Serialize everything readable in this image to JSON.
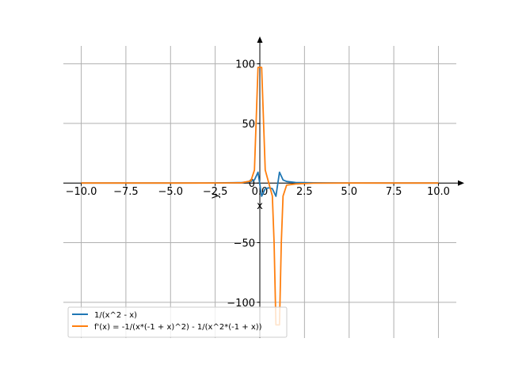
{
  "chart_data": {
    "type": "line",
    "xlabel": "x",
    "ylabel": "y",
    "xlim": [
      -11,
      11
    ],
    "ylim": [
      -130,
      115
    ],
    "grid": true,
    "legend_position": "lower-left",
    "x_ticks": [
      -10,
      -7.5,
      -5,
      -2.5,
      0,
      2.5,
      5,
      7.5,
      10
    ],
    "x_tick_labels": [
      "−10.0",
      "−7.5",
      "−5.0",
      "−2.5",
      "0.0",
      "2.5",
      "5.0",
      "7.5",
      "10.0"
    ],
    "y_ticks": [
      -100,
      -50,
      0,
      50,
      100
    ],
    "y_tick_labels": [
      "−100",
      "−50",
      "0",
      "50",
      "100"
    ],
    "series": [
      {
        "name": "1/(x^2 - x)",
        "color": "#1f77b4",
        "x": [
          -10,
          -7.5,
          -5,
          -3,
          -2,
          -1.5,
          -1,
          -0.5,
          -0.3,
          -0.1,
          0.1,
          0.3,
          0.5,
          0.7,
          0.9,
          1.1,
          1.3,
          1.5,
          2,
          3,
          5,
          7.5,
          10
        ],
        "y": [
          0.01,
          0.02,
          0.03,
          0.08,
          0.17,
          0.27,
          0.5,
          1.33,
          2.56,
          9.09,
          -11.1,
          -4.8,
          -4.0,
          -4.8,
          -11.1,
          9.09,
          2.56,
          1.33,
          0.5,
          0.17,
          0.05,
          0.02,
          0.01
        ]
      },
      {
        "name": "f'(x) = -1/(x*(-1 + x)^2) - 1/(x^2*(-1 + x))",
        "color": "#ff7f0e",
        "x": [
          -10,
          -7.5,
          -5,
          -3,
          -2,
          -1.5,
          -1,
          -0.5,
          -0.3,
          -0.1,
          0.1,
          0.3,
          0.5,
          0.7,
          0.8,
          0.9,
          1.1,
          1.2,
          1.3,
          1.5,
          2,
          3,
          5,
          7.5,
          10
        ],
        "y": [
          0.0,
          0.0,
          0.01,
          0.02,
          0.06,
          0.13,
          0.25,
          1.78,
          10.9,
          97.0,
          97.0,
          10.9,
          0,
          -10.9,
          -50.0,
          -119.0,
          -119.0,
          -50.0,
          -10.9,
          -1.78,
          -0.75,
          -0.14,
          -0.02,
          0.0,
          0.0
        ]
      }
    ]
  }
}
